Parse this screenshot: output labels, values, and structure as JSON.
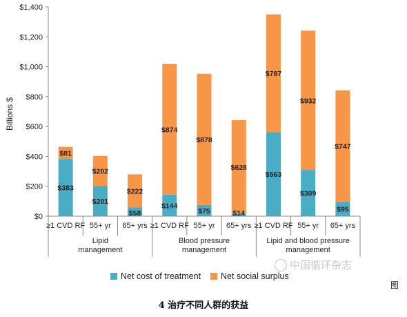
{
  "chart_data": {
    "type": "bar",
    "stacked": true,
    "ylabel": "Billions $",
    "ylim": [
      0,
      1400
    ],
    "yticks": [
      "$0",
      "$200",
      "$400",
      "$600",
      "$800",
      "$1,000",
      "$1,200",
      "$1,400"
    ],
    "ytick_values": [
      0,
      200,
      400,
      600,
      800,
      1000,
      1200,
      1400
    ],
    "groups": [
      {
        "label_lines": [
          "Lipid",
          "management"
        ]
      },
      {
        "label_lines": [
          "Blood pressure",
          "management"
        ]
      },
      {
        "label_lines": [
          "Lipid and blood pressure",
          "management"
        ]
      }
    ],
    "categories": [
      "≥1 CVD RF",
      "55+ yr",
      "65+ yrs",
      "≥1 CVD RF",
      "55+ yr",
      "65+ yrs",
      "≥1 CVD RF",
      "55+ yr",
      "65+ yrs"
    ],
    "category_group": [
      0,
      0,
      0,
      1,
      1,
      1,
      2,
      2,
      2
    ],
    "series": [
      {
        "name": "Net cost of treatment",
        "color": "#4bacc6",
        "values": [
          383,
          201,
          58,
          144,
          75,
          14,
          563,
          309,
          95
        ],
        "labels": [
          "$383",
          "$201",
          "$58",
          "$144",
          "$75",
          "$14",
          "$563",
          "$309",
          "$95"
        ]
      },
      {
        "name": "Net social surplus",
        "color": "#f79646",
        "values": [
          81,
          202,
          222,
          874,
          878,
          628,
          787,
          932,
          747
        ],
        "labels": [
          "$81",
          "$202",
          "$222",
          "$874",
          "$878",
          "$628",
          "$787",
          "$932",
          "$747"
        ]
      }
    ],
    "legend_position": "bottom",
    "grid": false
  },
  "watermark": "中国循环杂志",
  "side_char": "图",
  "caption": "4   治疗不同人群的获益"
}
